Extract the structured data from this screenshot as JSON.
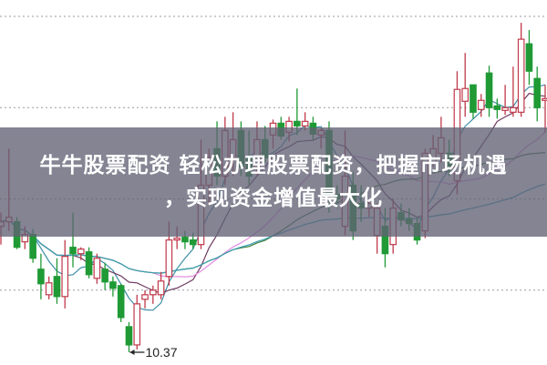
{
  "banner": {
    "line1": "牛牛股票配资 轻松办理股票配资，把握市场机遇",
    "line2": "，实现资金增值最大化"
  },
  "chart_data": {
    "type": "candlestick",
    "title": "",
    "xlabel": "",
    "ylabel": "",
    "ylim": [
      10.23,
      14.23
    ],
    "grid": true,
    "gridlines": [
      14.05,
      13.05,
      12.05,
      11.05
    ],
    "up_color": "#c0394a",
    "down_color": "#1f9a35",
    "annotation": {
      "label": "10.37",
      "value": 10.37,
      "candle_index": 16
    },
    "moving_averages": [
      {
        "period": 5,
        "color": "#3d8fa6"
      },
      {
        "period": 10,
        "color": "#6e3b62"
      },
      {
        "period": 20,
        "color": "#e28ee0"
      },
      {
        "period": 30,
        "color": "#3f7d3f"
      },
      {
        "period": 60,
        "color": "#3a9fb3"
      }
    ],
    "candles": [
      [
        11.75,
        11.9,
        11.55,
        11.8
      ],
      [
        11.8,
        12.6,
        11.7,
        11.85
      ],
      [
        11.8,
        11.85,
        11.5,
        11.52
      ],
      [
        11.58,
        11.75,
        11.5,
        11.66
      ],
      [
        11.66,
        11.72,
        11.35,
        11.4
      ],
      [
        11.28,
        11.45,
        10.95,
        11.12
      ],
      [
        11.0,
        11.2,
        10.95,
        11.13
      ],
      [
        11.2,
        11.4,
        10.9,
        10.98
      ],
      [
        10.98,
        11.6,
        10.85,
        11.42
      ],
      [
        11.52,
        11.9,
        11.3,
        11.45
      ],
      [
        11.45,
        11.52,
        11.38,
        11.5
      ],
      [
        11.47,
        11.52,
        11.18,
        11.22
      ],
      [
        11.18,
        11.45,
        11.12,
        11.4
      ],
      [
        11.28,
        11.35,
        11.05,
        11.14
      ],
      [
        11.14,
        11.2,
        10.98,
        11.07
      ],
      [
        11.1,
        11.12,
        10.7,
        10.75
      ],
      [
        10.65,
        10.7,
        10.37,
        10.45
      ],
      [
        10.45,
        11.0,
        10.4,
        10.9
      ],
      [
        10.95,
        11.05,
        10.85,
        11.0
      ],
      [
        11.0,
        11.1,
        10.9,
        11.05
      ],
      [
        11.0,
        11.25,
        10.95,
        11.15
      ],
      [
        11.2,
        11.8,
        11.1,
        11.6
      ],
      [
        11.6,
        11.75,
        11.5,
        11.62
      ],
      [
        11.63,
        11.7,
        11.5,
        11.58
      ],
      [
        11.6,
        11.68,
        11.5,
        11.55
      ],
      [
        11.55,
        12.7,
        11.5,
        12.2
      ],
      [
        12.2,
        12.6,
        12.0,
        12.5
      ],
      [
        12.6,
        12.9,
        12.2,
        12.3
      ],
      [
        12.3,
        12.95,
        12.2,
        12.8
      ],
      [
        12.5,
        13.0,
        12.3,
        12.7
      ],
      [
        12.8,
        12.9,
        12.3,
        12.4
      ],
      [
        12.5,
        12.8,
        12.2,
        12.3
      ],
      [
        12.4,
        12.9,
        12.3,
        12.7
      ],
      [
        12.7,
        12.85,
        12.45,
        12.5
      ],
      [
        12.75,
        12.92,
        12.6,
        12.88
      ],
      [
        12.88,
        12.95,
        12.7,
        12.74
      ],
      [
        12.78,
        12.95,
        12.68,
        12.9
      ],
      [
        12.9,
        13.26,
        12.75,
        12.85
      ],
      [
        12.85,
        13.0,
        12.8,
        12.9
      ],
      [
        12.88,
        12.95,
        12.7,
        12.76
      ],
      [
        12.75,
        12.82,
        12.6,
        12.8
      ],
      [
        12.8,
        12.9,
        11.9,
        12.1
      ],
      [
        12.1,
        12.2,
        11.95,
        12.05
      ],
      [
        11.75,
        12.8,
        11.65,
        12.3
      ],
      [
        12.2,
        12.35,
        11.6,
        11.7
      ],
      [
        12.0,
        12.2,
        11.8,
        11.95
      ],
      [
        11.95,
        12.05,
        11.85,
        12.0
      ],
      [
        11.65,
        12.0,
        11.45,
        11.95
      ],
      [
        11.75,
        11.95,
        11.3,
        11.45
      ],
      [
        11.55,
        12.05,
        11.45,
        11.95
      ],
      [
        11.9,
        12.0,
        11.75,
        11.82
      ],
      [
        11.83,
        11.95,
        11.7,
        11.78
      ],
      [
        11.78,
        11.85,
        11.55,
        11.6
      ],
      [
        11.7,
        12.6,
        11.62,
        12.55
      ],
      [
        12.45,
        12.75,
        12.4,
        12.6
      ],
      [
        12.55,
        12.95,
        12.45,
        12.72
      ],
      [
        12.55,
        12.7,
        12.3,
        12.4
      ],
      [
        12.25,
        13.45,
        12.1,
        13.25
      ],
      [
        13.12,
        13.65,
        12.95,
        13.26
      ],
      [
        13.3,
        13.3,
        12.93,
        13.0
      ],
      [
        13.03,
        13.2,
        12.95,
        13.13
      ],
      [
        13.43,
        13.51,
        12.95,
        13.05
      ],
      [
        13.07,
        13.15,
        12.93,
        13.03
      ],
      [
        13.02,
        13.3,
        12.97,
        13.05
      ],
      [
        13.0,
        13.5,
        12.95,
        13.05
      ],
      [
        13.0,
        13.98,
        12.95,
        13.8
      ],
      [
        13.75,
        13.9,
        13.3,
        13.45
      ],
      [
        13.37,
        13.5,
        12.9,
        13.05
      ],
      [
        13.13,
        13.3,
        12.78,
        13.15
      ]
    ]
  }
}
